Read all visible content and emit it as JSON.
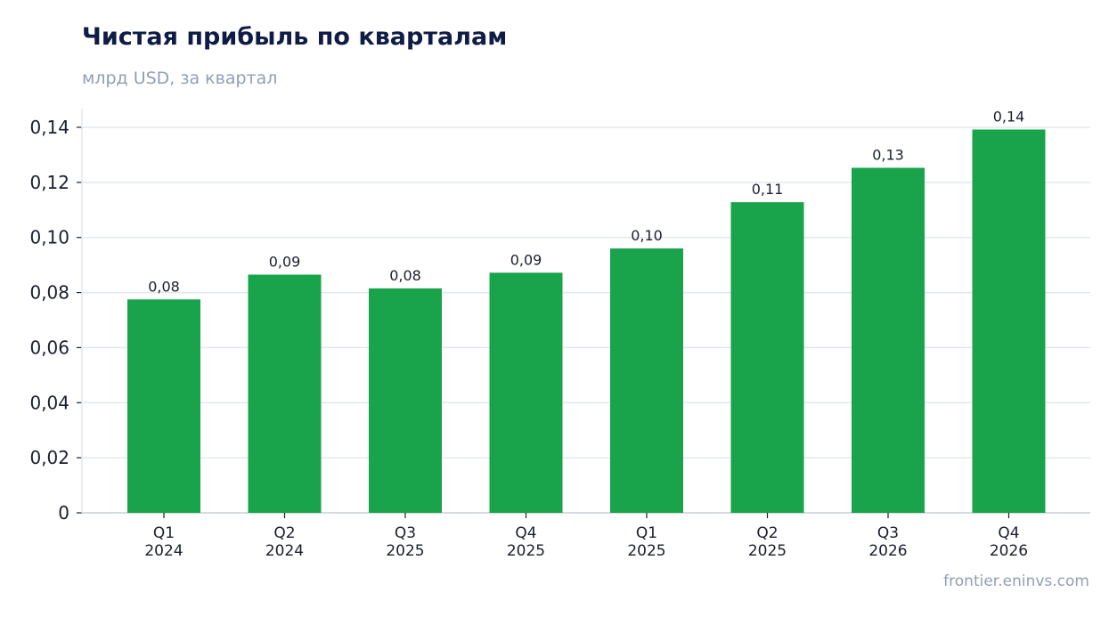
{
  "title": "Чистая прибыль по кварталам",
  "subtitle": "млрд USD, за квартал",
  "source": "frontier.eninvs.com",
  "chart_data": {
    "type": "bar",
    "title": "Чистая прибыль по кварталам",
    "subtitle": "млрд USD, за квартал",
    "categories": [
      [
        "Q1",
        "2024"
      ],
      [
        "Q2",
        "2024"
      ],
      [
        "Q3",
        "2025"
      ],
      [
        "Q4",
        "2025"
      ],
      [
        "Q1",
        "2025"
      ],
      [
        "Q2",
        "2025"
      ],
      [
        "Q3",
        "2026"
      ],
      [
        "Q4",
        "2026"
      ]
    ],
    "values": [
      0.0775,
      0.0865,
      0.0815,
      0.0872,
      0.096,
      0.1128,
      0.1253,
      0.1392
    ],
    "data_labels": [
      "0,08",
      "0,09",
      "0,08",
      "0,09",
      "0,10",
      "0,11",
      "0,13",
      "0,14"
    ],
    "ylim": [
      0,
      0.14
    ],
    "yticks": [
      0,
      0.02,
      0.04,
      0.06,
      0.08,
      0.1,
      0.12,
      0.14
    ],
    "ytick_labels": [
      "0",
      "0,02",
      "0,04",
      "0,06",
      "0,08",
      "0,10",
      "0,12",
      "0,14"
    ],
    "grid": "horizontal",
    "colors": {
      "bar": "#19a34a",
      "grid": "#e3e7ee",
      "axis": "#c9cfd9",
      "text": "#1a1f2e",
      "title": "#0f1c45",
      "muted": "#8fa0b5"
    }
  }
}
